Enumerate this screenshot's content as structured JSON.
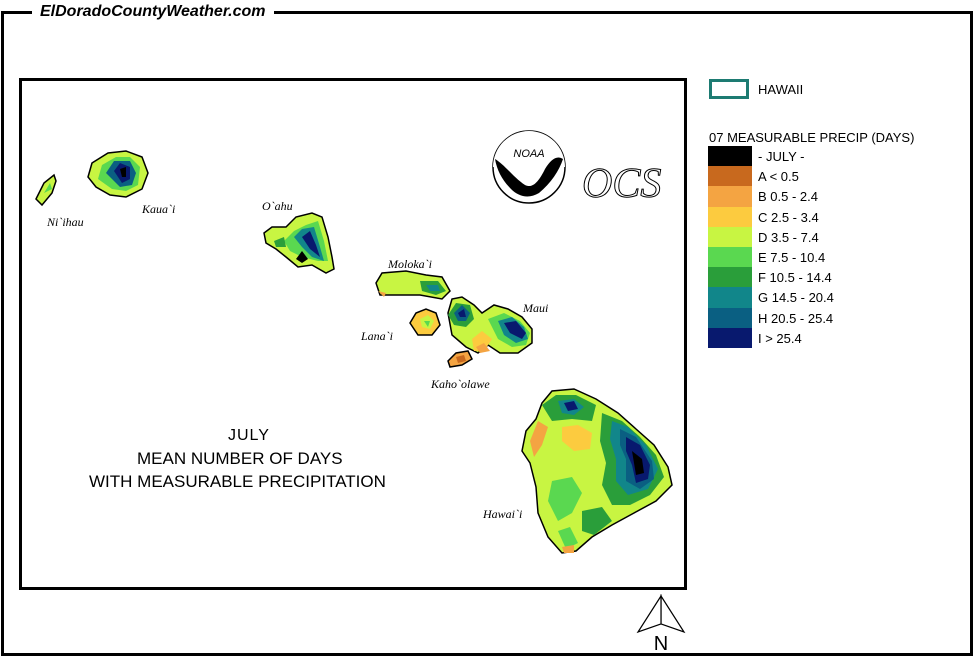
{
  "site": {
    "title": "ElDoradoCountyWeather.com"
  },
  "map": {
    "title_month": "JULY",
    "title_line1": "MEAN NUMBER OF DAYS",
    "title_line2": "WITH MEASURABLE PRECIPITATION",
    "islands": [
      "Ni`ihau",
      "Kaua`i",
      "O`ahu",
      "Moloka`i",
      "Lana`i",
      "Maui",
      "Kaho`olawe",
      "Hawai`i"
    ],
    "logos": {
      "noaa": "NOAA",
      "ocs": "OCS"
    },
    "north_label": "N"
  },
  "legend": {
    "state_label": "HAWAII",
    "heading": "07 MEASURABLE  PRECIP (DAYS)",
    "items": [
      {
        "label": "- JULY -",
        "color": "#000000"
      },
      {
        "label": "A < 0.5",
        "color": "#c8691e"
      },
      {
        "label": "B 0.5 - 2.4",
        "color": "#f4a442"
      },
      {
        "label": "C 2.5 - 3.4",
        "color": "#fccb3f"
      },
      {
        "label": "D 3.5 - 7.4",
        "color": "#c8f542"
      },
      {
        "label": "E 7.5 - 10.4",
        "color": "#5ad850"
      },
      {
        "label": "F 10.5 - 14.4",
        "color": "#2a9e3a"
      },
      {
        "label": "G 14.5 - 20.4",
        "color": "#11868a"
      },
      {
        "label": "H 20.5 - 25.4",
        "color": "#0a5f82"
      },
      {
        "label": "I > 25.4",
        "color": "#08196e"
      }
    ]
  }
}
